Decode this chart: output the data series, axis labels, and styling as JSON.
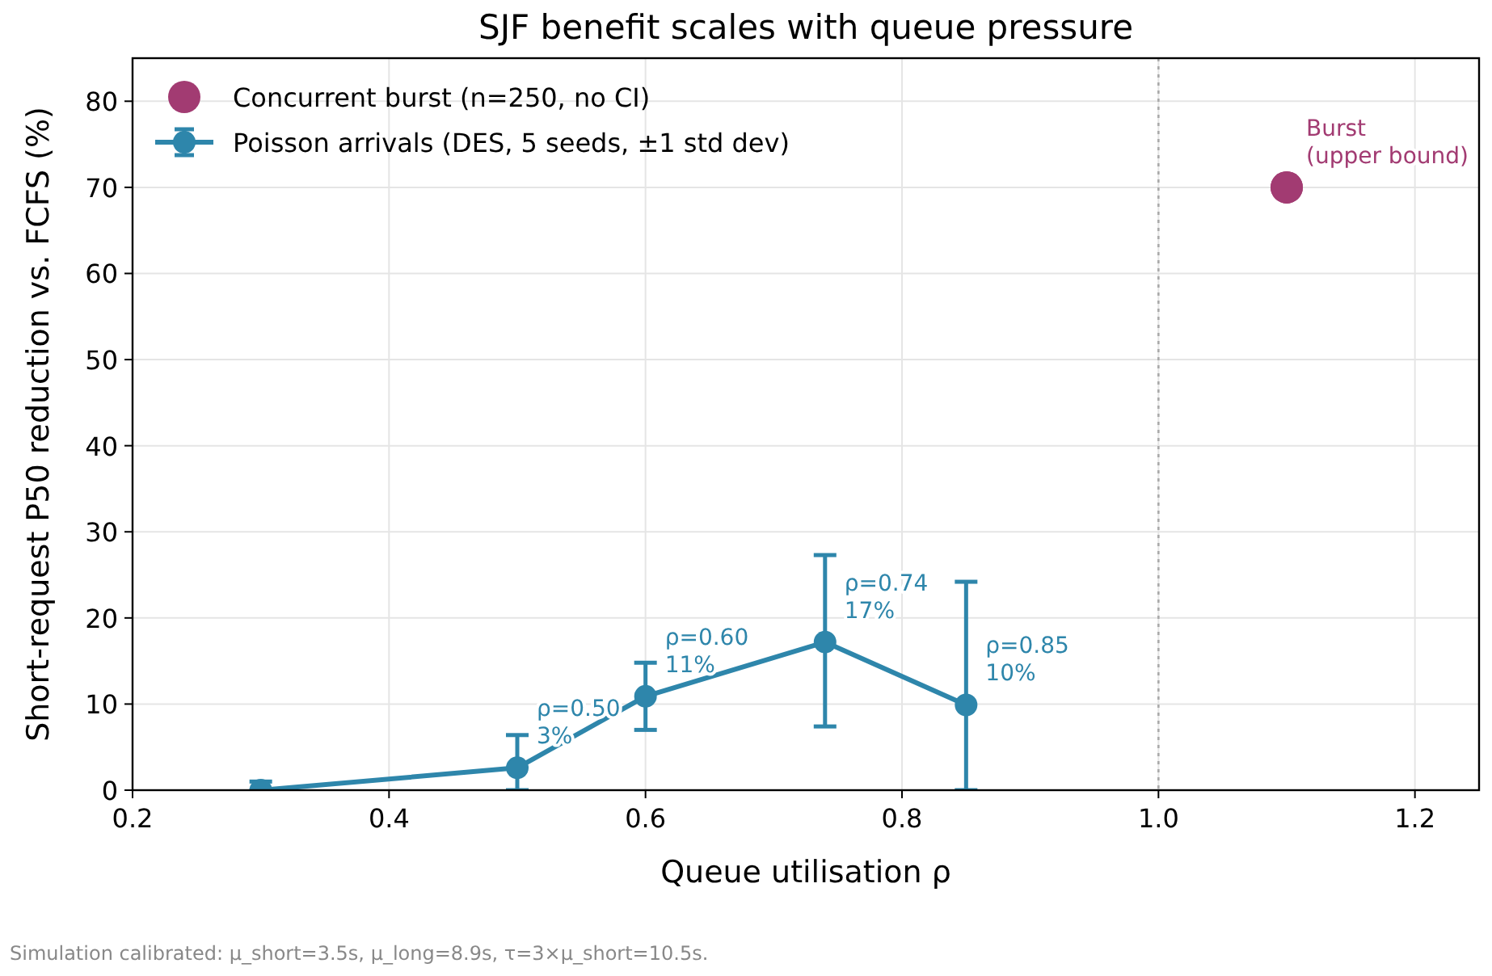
{
  "chart_data": {
    "type": "line",
    "title": "SJF benefit scales with queue pressure",
    "xlabel": "Queue utilisation ρ",
    "ylabel": "Short-request P50 reduction vs. FCFS (%)",
    "xlim": [
      0.2,
      1.25
    ],
    "xticks": [
      {
        "value": 0.2,
        "label": "0.2"
      },
      {
        "value": 0.4,
        "label": "0.4"
      },
      {
        "value": 0.6,
        "label": "0.6"
      },
      {
        "value": 0.8,
        "label": "0.8"
      },
      {
        "value": 1.0,
        "label": "1.0"
      },
      {
        "value": 1.2,
        "label": "1.2"
      }
    ],
    "ylim": [
      0,
      85
    ],
    "yticks": [
      0,
      10,
      20,
      30,
      40,
      50,
      60,
      70,
      80
    ],
    "grid": true,
    "legend": "top left",
    "marker": "circle",
    "series": [
      {
        "name": "Concurrent burst (n=250, no CI)",
        "type": "scatter",
        "color": "#a23b72",
        "x": [
          1.1
        ],
        "values": [
          70
        ]
      },
      {
        "name": "Poisson arrivals (DES, 5 seeds, ±1 std dev)",
        "type": "line",
        "color": "#2e86ab",
        "x": [
          0.3,
          0.5,
          0.6,
          0.74,
          0.85
        ],
        "values": [
          0,
          2.6,
          10.9,
          17.2,
          9.9
        ],
        "errors": [
          [
            0,
            1
          ],
          [
            0,
            6.4
          ],
          3.9,
          [
            7.4,
            27.3
          ],
          [
            0,
            24.2
          ]
        ]
      }
    ],
    "ref_lines": [
      {
        "axis": "x",
        "value": 1.0,
        "color": "#aaaaaa",
        "line_style": "dotted"
      }
    ],
    "annotations": [
      {
        "text": "ρ=0.50\n3%",
        "x": 0.5,
        "y": 2.6
      },
      {
        "text": "ρ=0.60\n11%",
        "x": 0.6,
        "y": 10.9
      },
      {
        "text": "ρ=0.74\n17%",
        "x": 0.74,
        "y": 17.2
      },
      {
        "text": "ρ=0.85\n10%",
        "x": 0.85,
        "y": 9.9
      },
      {
        "text": "Burst\n(upper bound)",
        "x": 1.1,
        "y": 70
      },
      "Simulation calibrated: μ_short=3.5s, μ_long=8.9s, τ=3×μ_short=10.5s."
    ]
  }
}
